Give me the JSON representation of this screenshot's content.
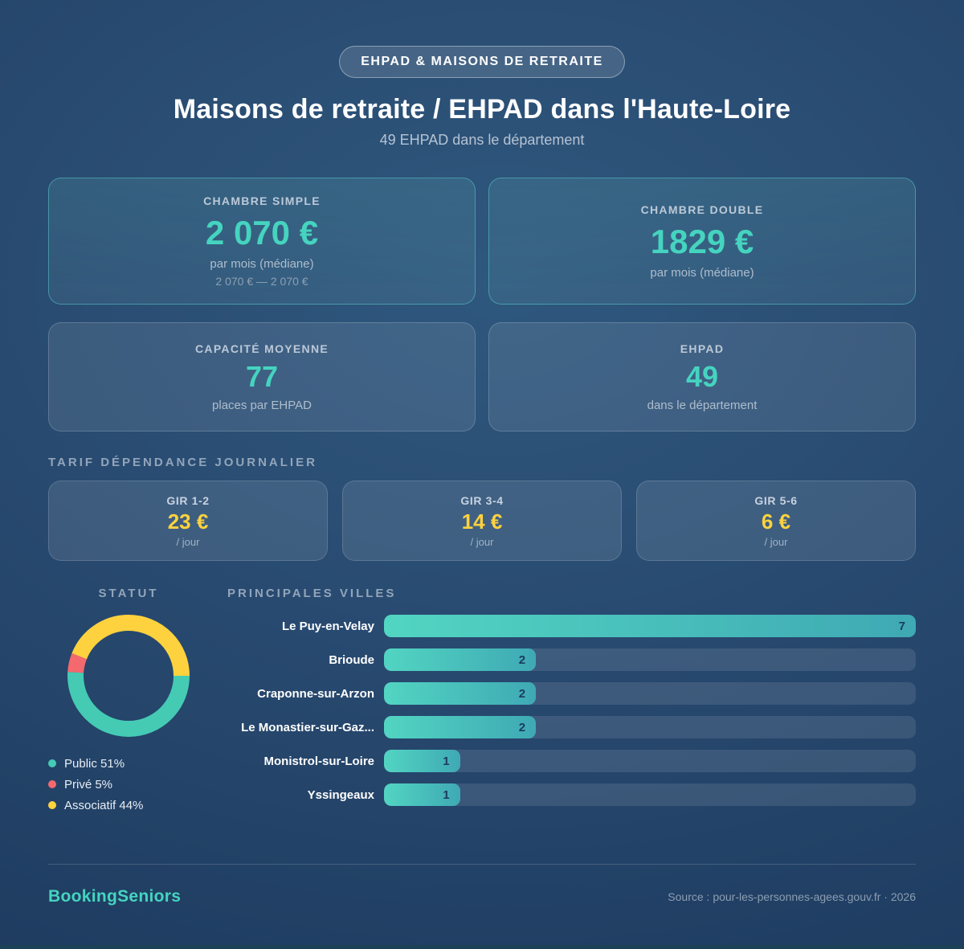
{
  "badge": {
    "label": "EHPAD & MAISONS DE RETRAITE"
  },
  "header": {
    "title": "Maisons de retraite / EHPAD dans l'Haute-Loire",
    "subtitle": "49 EHPAD dans le département"
  },
  "stat_cards": [
    {
      "label": "CHAMBRE SIMPLE",
      "value": "2 070 €",
      "sub": "par mois (médiane)",
      "range": "2 070 € — 2 070 €"
    },
    {
      "label": "CHAMBRE DOUBLE",
      "value": "1829 €",
      "sub": "par mois (médiane)",
      "range": ""
    },
    {
      "label": "CAPACITÉ MOYENNE",
      "value": "77",
      "sub": "places par EHPAD"
    },
    {
      "label": "EHPAD",
      "value": "49",
      "sub": "dans le département"
    }
  ],
  "tarif_section": {
    "title": "TARIF DÉPENDANCE JOURNALIER",
    "items": [
      {
        "label": "GIR 1-2",
        "value": "23 €",
        "unit": "/ jour"
      },
      {
        "label": "GIR 3-4",
        "value": "14 €",
        "unit": "/ jour"
      },
      {
        "label": "GIR 5-6",
        "value": "6 €",
        "unit": "/ jour"
      }
    ]
  },
  "chart_data": [
    {
      "type": "pie",
      "donut": true,
      "title": "STATUT",
      "labels": [
        "Public",
        "Privé",
        "Associatif"
      ],
      "values": [
        51,
        5,
        44
      ],
      "unit": "%",
      "colors": [
        "#45cbb4",
        "#f3696e",
        "#fdd23e"
      ],
      "start_angle_deg_from_3oclock_clockwise": 0,
      "legend_position": "bottom-left"
    },
    {
      "type": "bar",
      "orientation": "horizontal",
      "title": "PRINCIPALES VILLES",
      "categories": [
        "Le Puy-en-Velay",
        "Brioude",
        "Craponne-sur-Arzon",
        "Le Monastier-sur-Gaz...",
        "Monistrol-sur-Loire",
        "Yssingeaux"
      ],
      "values": [
        7,
        2,
        2,
        2,
        1,
        1
      ],
      "xlim": [
        0,
        7
      ],
      "bar_gradient": [
        "#52d5c2",
        "#3fa9b4"
      ],
      "value_label_color": "#1d3a5f"
    }
  ],
  "footer": {
    "brand": "BookingSeniors",
    "source": "Source : pour-les-personnes-agees.gouv.fr · 2026"
  },
  "colors": {
    "accent_teal": "#45d4bf",
    "accent_yellow": "#fdd23e",
    "accent_red": "#f3696e",
    "background_navy": "#27496f"
  }
}
